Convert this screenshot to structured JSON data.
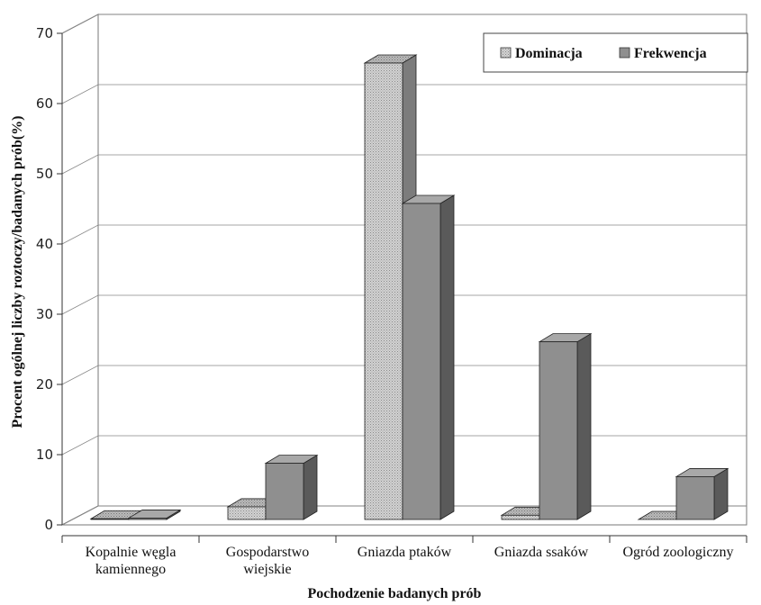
{
  "chart_data": {
    "type": "bar",
    "title": "",
    "xlabel": "Pochodzenie badanych prób",
    "ylabel": "Procent ogólnej liczby roztoczy/badanych prób(%)",
    "ylim": [
      0,
      70
    ],
    "yticks": [
      0,
      10,
      20,
      30,
      40,
      50,
      60,
      70
    ],
    "grid": true,
    "legend_position": "top-right",
    "categories": [
      [
        "Kopalnie węgla",
        "kamiennego"
      ],
      [
        "Gospodarstwo",
        "wiejskie"
      ],
      [
        "Gniazda ptaków"
      ],
      [
        "Gniazda ssaków"
      ],
      [
        "Ogród zoologiczny"
      ]
    ],
    "series": [
      {
        "name": "Dominacja",
        "values": [
          0.1,
          1.8,
          65,
          0.6,
          0
        ],
        "color": "#c9c9c9",
        "pattern": "dotted"
      },
      {
        "name": "Frekwencja",
        "values": [
          0.2,
          8,
          45,
          25.3,
          6.1
        ],
        "color": "#8f8f8f",
        "pattern": "solid"
      }
    ]
  }
}
